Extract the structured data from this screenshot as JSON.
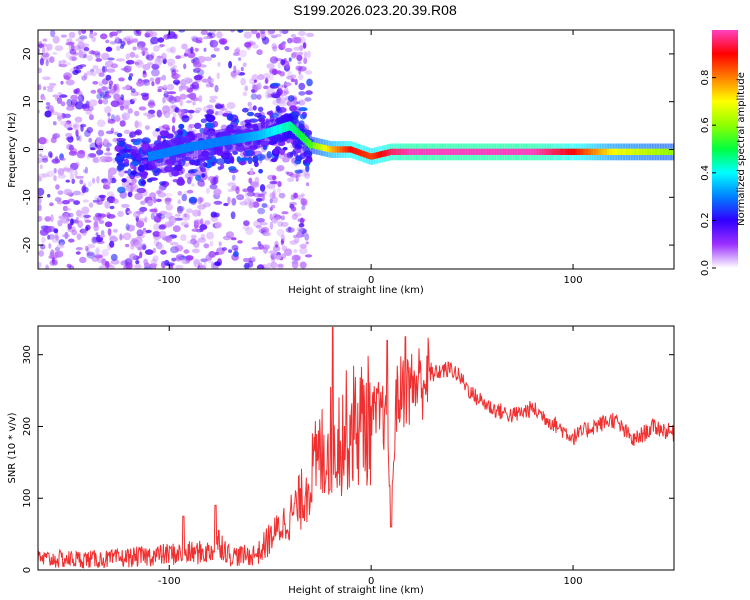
{
  "title": "S199.2026.023.20.39.R08",
  "chart_data": [
    {
      "type": "heatmap",
      "xlabel": "Height of straight line (km)",
      "ylabel": "Frequency (Hz)",
      "xlim": [
        -165,
        150
      ],
      "ylim": [
        -25,
        25
      ],
      "xticks": [
        -100,
        0,
        100
      ],
      "yticks": [
        -20,
        -10,
        0,
        10,
        20
      ],
      "colorbar": {
        "label": "Normalized spectral amplitude",
        "range": [
          0,
          1
        ],
        "ticks": [
          0.0,
          0.2,
          0.4,
          0.6,
          0.8
        ]
      },
      "ridge": {
        "x": [
          -110,
          -90,
          -70,
          -55,
          -40,
          -30,
          -20,
          -10,
          0,
          10,
          20,
          40,
          60,
          80,
          100,
          120,
          150
        ],
        "freq": [
          -1.5,
          0.5,
          2,
          3,
          5,
          1,
          0,
          0,
          -1.5,
          -0.5,
          -0.5,
          -0.5,
          -0.5,
          -0.5,
          -0.5,
          -0.5,
          -0.5
        ],
        "amplitude": [
          0.3,
          0.3,
          0.3,
          0.35,
          0.45,
          0.55,
          0.75,
          0.9,
          0.85,
          0.95,
          1.0,
          1.0,
          1.0,
          1.0,
          0.9,
          0.7,
          0.6
        ]
      }
    },
    {
      "type": "line",
      "xlabel": "Height of straight line (km)",
      "ylabel": "SNR (10 * v/v)",
      "xlim": [
        -165,
        150
      ],
      "ylim": [
        0,
        340
      ],
      "xticks": [
        -100,
        0,
        100
      ],
      "yticks": [
        0,
        100,
        200,
        300
      ],
      "series": [
        {
          "name": "SNR",
          "color": "#f03030",
          "x": [
            -165,
            -130,
            -100,
            -80,
            -75,
            -70,
            -60,
            -55,
            -50,
            -45,
            -40,
            -35,
            -30,
            -25,
            -20,
            -15,
            -10,
            -5,
            0,
            5,
            8,
            10,
            12,
            15,
            20,
            25,
            30,
            35,
            40,
            45,
            50,
            60,
            70,
            80,
            90,
            100,
            110,
            120,
            130,
            140,
            150
          ],
          "y": [
            15,
            15,
            22,
            25,
            40,
            20,
            20,
            25,
            45,
            60,
            75,
            95,
            130,
            160,
            180,
            185,
            200,
            205,
            210,
            220,
            200,
            60,
            230,
            250,
            255,
            265,
            272,
            278,
            280,
            265,
            245,
            225,
            215,
            225,
            205,
            185,
            200,
            210,
            180,
            200,
            190
          ],
          "spikes": [
            {
              "x": -19,
              "y": 338
            },
            {
              "x": 8,
              "y": 320
            },
            {
              "x": 17,
              "y": 325
            },
            {
              "x": 10,
              "y": 60
            },
            {
              "x": -77,
              "y": 90
            },
            {
              "x": -93,
              "y": 75
            }
          ]
        }
      ]
    }
  ]
}
